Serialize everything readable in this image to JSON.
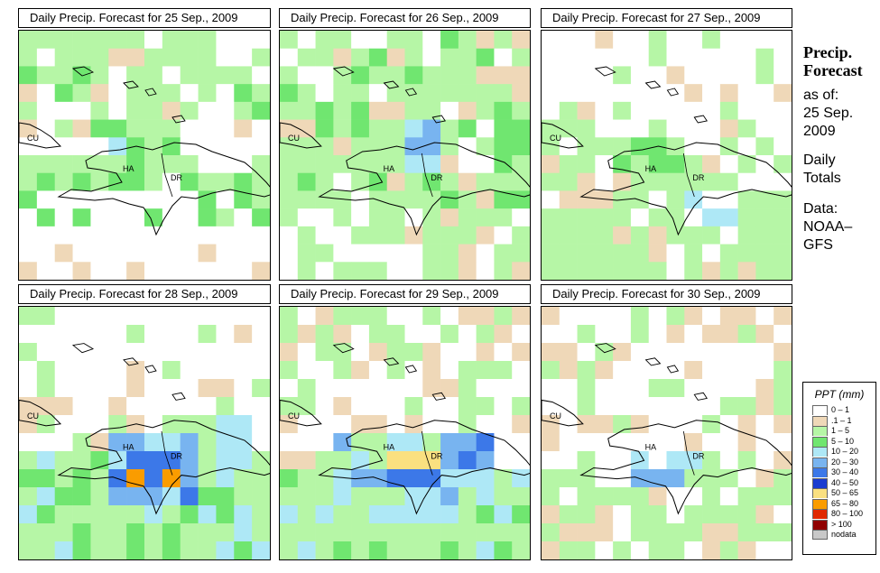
{
  "panels": [
    {
      "title": "Daily Precip. Forecast for  25 Sep., 2009",
      "labels": {
        "cu": "CU",
        "ha": "HA",
        "dr": "DR"
      }
    },
    {
      "title": "Daily Precip. Forecast for  26 Sep., 2009",
      "labels": {
        "cu": "CU",
        "ha": "HA",
        "dr": "DR"
      }
    },
    {
      "title": "Daily Precip. Forecast for  27 Sep., 2009",
      "labels": {
        "cu": "CU",
        "ha": "HA",
        "dr": "DR"
      }
    },
    {
      "title": "Daily Precip. Forecast for  28 Sep., 2009",
      "labels": {
        "cu": "CU",
        "ha": "HA",
        "dr": "DR"
      }
    },
    {
      "title": "Daily Precip. Forecast for  29 Sep., 2009",
      "labels": {
        "cu": "CU",
        "ha": "HA",
        "dr": "DR"
      }
    },
    {
      "title": "Daily Precip. Forecast for  30 Sep., 2009",
      "labels": {
        "cu": "CU",
        "ha": "HA",
        "dr": "DR"
      }
    }
  ],
  "info": {
    "heading_line1": "Precip.",
    "heading_line2": "Forecast",
    "asof_label": "as of:",
    "date_line1": "25 Sep.",
    "date_line2": "2009",
    "totals_line1": "Daily",
    "totals_line2": "Totals",
    "data_line1": "Data:",
    "data_line2": "NOAA–",
    "data_line3": "GFS"
  },
  "legend": {
    "title": "PPT (mm)",
    "items": [
      {
        "label": "0 – 1",
        "color": "#ffffff"
      },
      {
        "label": ".1 – 1",
        "color": "#efd8b8"
      },
      {
        "label": "1 – 5",
        "color": "#b6f6a6"
      },
      {
        "label": "5 – 10",
        "color": "#70e670"
      },
      {
        "label": "10 – 20",
        "color": "#aee8f6"
      },
      {
        "label": "20 – 30",
        "color": "#78b4f0"
      },
      {
        "label": "30 – 40",
        "color": "#3c78e8"
      },
      {
        "label": "40 – 50",
        "color": "#1a3cd0"
      },
      {
        "label": "50 – 65",
        "color": "#fae080"
      },
      {
        "label": "65 – 80",
        "color": "#fa9c00"
      },
      {
        "label": "80 – 100",
        "color": "#e02800"
      },
      {
        "label": "> 100",
        "color": "#900000"
      },
      {
        "label": "nodata",
        "color": "#c8c8c8"
      }
    ]
  }
}
